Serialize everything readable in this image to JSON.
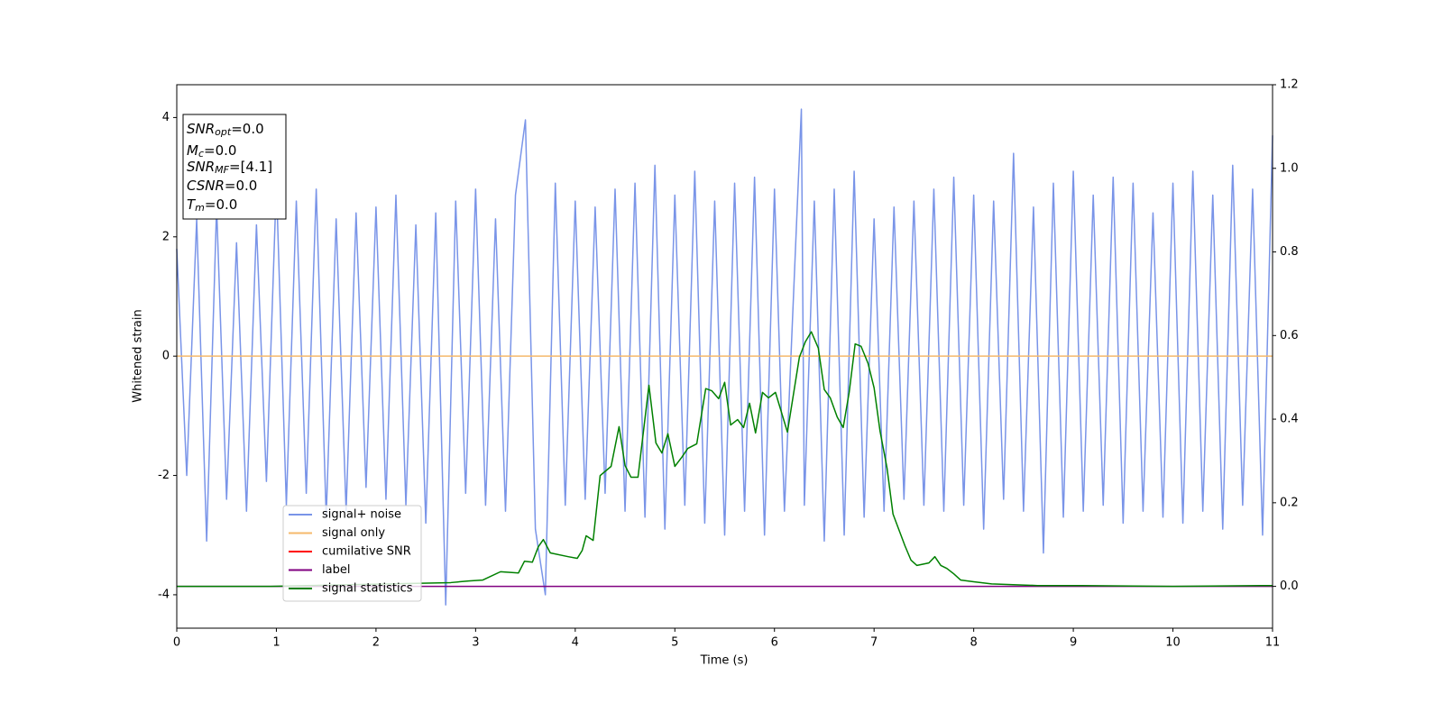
{
  "chart_data": {
    "type": "line",
    "xlabel": "Time (s)",
    "ylabel": "Whitened strain",
    "xlim": [
      0,
      11
    ],
    "xticks": [
      0,
      1,
      2,
      3,
      4,
      5,
      6,
      7,
      8,
      9,
      10,
      11
    ],
    "ylim": [
      -4.56,
      4.55
    ],
    "yticks": [
      -4,
      -2,
      0,
      2,
      4
    ],
    "y2lim": [
      -0.1,
      1.2
    ],
    "y2ticks": [
      {
        "value": 0,
        "label": "0.0"
      },
      0.2,
      0.4,
      0.6,
      0.8,
      {
        "value": 1,
        "label": "1.0"
      },
      1.2
    ],
    "legend": "lower left",
    "annotations": [
      {
        "text": "SNR",
        "sub": "opt",
        "rest": "=0.0"
      },
      {
        "text": "M",
        "sub": "c",
        "rest": "=0.0"
      },
      {
        "text": "SNR",
        "sub": "MF",
        "rest": "=[4.1]"
      },
      {
        "text": "CSNR",
        "rest": "=0.0"
      },
      {
        "text": "T",
        "sub": "m",
        "rest": "=0.0"
      }
    ],
    "series": [
      {
        "name": "signal+ noise",
        "color": "#7994e8",
        "x": [
          0,
          0.1,
          0.2,
          0.3,
          0.4,
          0.5,
          0.6,
          0.7,
          0.8,
          0.9,
          1,
          1.1,
          1.2,
          1.3,
          1.4,
          1.5,
          1.6,
          1.7,
          1.8,
          1.9,
          2,
          2.1,
          2.2,
          2.3,
          2.4,
          2.5,
          2.6,
          2.7,
          2.8,
          2.9,
          3,
          3.1,
          3.2,
          3.3,
          3.4,
          3.5,
          3.6,
          3.7,
          3.8,
          3.9,
          4,
          4.1,
          4.2,
          4.3,
          4.4,
          4.5,
          4.6,
          4.7,
          4.8,
          4.9,
          5,
          5.1,
          5.2,
          5.3,
          5.4,
          5.5,
          5.6,
          5.7,
          5.8,
          5.9,
          6,
          6.1,
          6.27,
          6.3,
          6.4,
          6.5,
          6.6,
          6.7,
          6.8,
          6.9,
          7,
          7.1,
          7.2,
          7.3,
          7.4,
          7.5,
          7.6,
          7.7,
          7.8,
          7.9,
          8,
          8.1,
          8.2,
          8.3,
          8.4,
          8.5,
          8.6,
          8.7,
          8.8,
          8.9,
          9,
          9.1,
          9.2,
          9.3,
          9.4,
          9.5,
          9.6,
          9.7,
          9.8,
          9.9,
          10,
          10.1,
          10.2,
          10.3,
          10.4,
          10.5,
          10.6,
          10.7,
          10.8,
          10.9,
          11
        ],
        "values": [
          1.8,
          -2.0,
          2.3,
          -3.1,
          2.5,
          -2.4,
          1.9,
          -2.6,
          2.2,
          -2.1,
          2.9,
          -2.5,
          2.6,
          -2.3,
          2.8,
          -2.7,
          2.3,
          -2.6,
          2.4,
          -2.2,
          2.5,
          -2.4,
          2.7,
          -2.5,
          2.2,
          -2.8,
          2.4,
          -4.17,
          2.6,
          -2.3,
          2.8,
          -2.5,
          2.3,
          -2.6,
          2.7,
          3.96,
          -2.9,
          -4.0,
          2.9,
          -2.5,
          2.6,
          -2.4,
          2.5,
          -2.3,
          2.8,
          -2.6,
          2.9,
          -2.7,
          3.2,
          -2.9,
          2.7,
          -2.5,
          3.1,
          -2.8,
          2.6,
          -3.0,
          2.9,
          -2.6,
          3.0,
          -3.0,
          2.8,
          -2.6,
          4.14,
          -2.5,
          2.6,
          -3.1,
          2.8,
          -3.0,
          3.1,
          -2.7,
          2.3,
          -2.6,
          2.5,
          -2.4,
          2.6,
          -2.5,
          2.8,
          -2.6,
          3.0,
          -2.5,
          2.7,
          -2.9,
          2.6,
          -2.4,
          3.4,
          -2.6,
          2.5,
          -3.3,
          2.9,
          -2.7,
          3.1,
          -2.6,
          2.7,
          -2.5,
          3.0,
          -2.8,
          2.9,
          -2.6,
          2.4,
          -2.7,
          2.9,
          -2.8,
          3.1,
          -2.6,
          2.7,
          -2.9,
          3.2,
          -2.5,
          2.8,
          -3.0,
          3.7
        ]
      },
      {
        "name": "signal only",
        "color": "#f5b96b",
        "x": [
          0,
          11
        ],
        "values": [
          0,
          0
        ]
      },
      {
        "name": "cumilative SNR",
        "color": "#ff0000"
      },
      {
        "name": "label",
        "color": "#800080",
        "axis": "y2",
        "x": [
          0,
          11
        ],
        "values": [
          0,
          0
        ]
      },
      {
        "name": "signal statistics",
        "color": "#008000",
        "axis": "y2",
        "x": [
          0,
          0.94,
          2.75,
          2.93,
          3.07,
          3.25,
          3.43,
          3.49,
          3.57,
          3.63,
          3.68,
          3.75,
          3.93,
          4.02,
          4.07,
          4.11,
          4.18,
          4.25,
          4.36,
          4.44,
          4.5,
          4.56,
          4.63,
          4.74,
          4.81,
          4.87,
          4.93,
          5.0,
          5.07,
          5.13,
          5.22,
          5.31,
          5.37,
          5.44,
          5.5,
          5.56,
          5.63,
          5.69,
          5.75,
          5.81,
          5.88,
          5.94,
          6.01,
          6.13,
          6.25,
          6.31,
          6.37,
          6.44,
          6.5,
          6.56,
          6.63,
          6.69,
          6.75,
          6.81,
          6.87,
          6.94,
          7.0,
          7.06,
          7.13,
          7.19,
          7.31,
          7.37,
          7.43,
          7.55,
          7.61,
          7.67,
          7.73,
          7.8,
          7.87,
          8.0,
          8.18,
          8.64,
          9.09,
          10.0,
          11
        ],
        "values": [
          0,
          0,
          0.009,
          0.013,
          0.015,
          0.035,
          0.032,
          0.06,
          0.058,
          0.095,
          0.112,
          0.08,
          0.071,
          0.067,
          0.086,
          0.121,
          0.11,
          0.265,
          0.287,
          0.382,
          0.289,
          0.261,
          0.261,
          0.481,
          0.343,
          0.319,
          0.365,
          0.287,
          0.309,
          0.33,
          0.341,
          0.473,
          0.468,
          0.449,
          0.488,
          0.386,
          0.399,
          0.38,
          0.438,
          0.367,
          0.464,
          0.451,
          0.464,
          0.369,
          0.548,
          0.585,
          0.609,
          0.57,
          0.471,
          0.451,
          0.405,
          0.38,
          0.464,
          0.58,
          0.574,
          0.533,
          0.475,
          0.371,
          0.283,
          0.173,
          0.097,
          0.063,
          0.05,
          0.056,
          0.071,
          0.05,
          0.043,
          0.03,
          0.015,
          0.011,
          0.006,
          0.002,
          0.002,
          0,
          0.002
        ]
      }
    ]
  }
}
